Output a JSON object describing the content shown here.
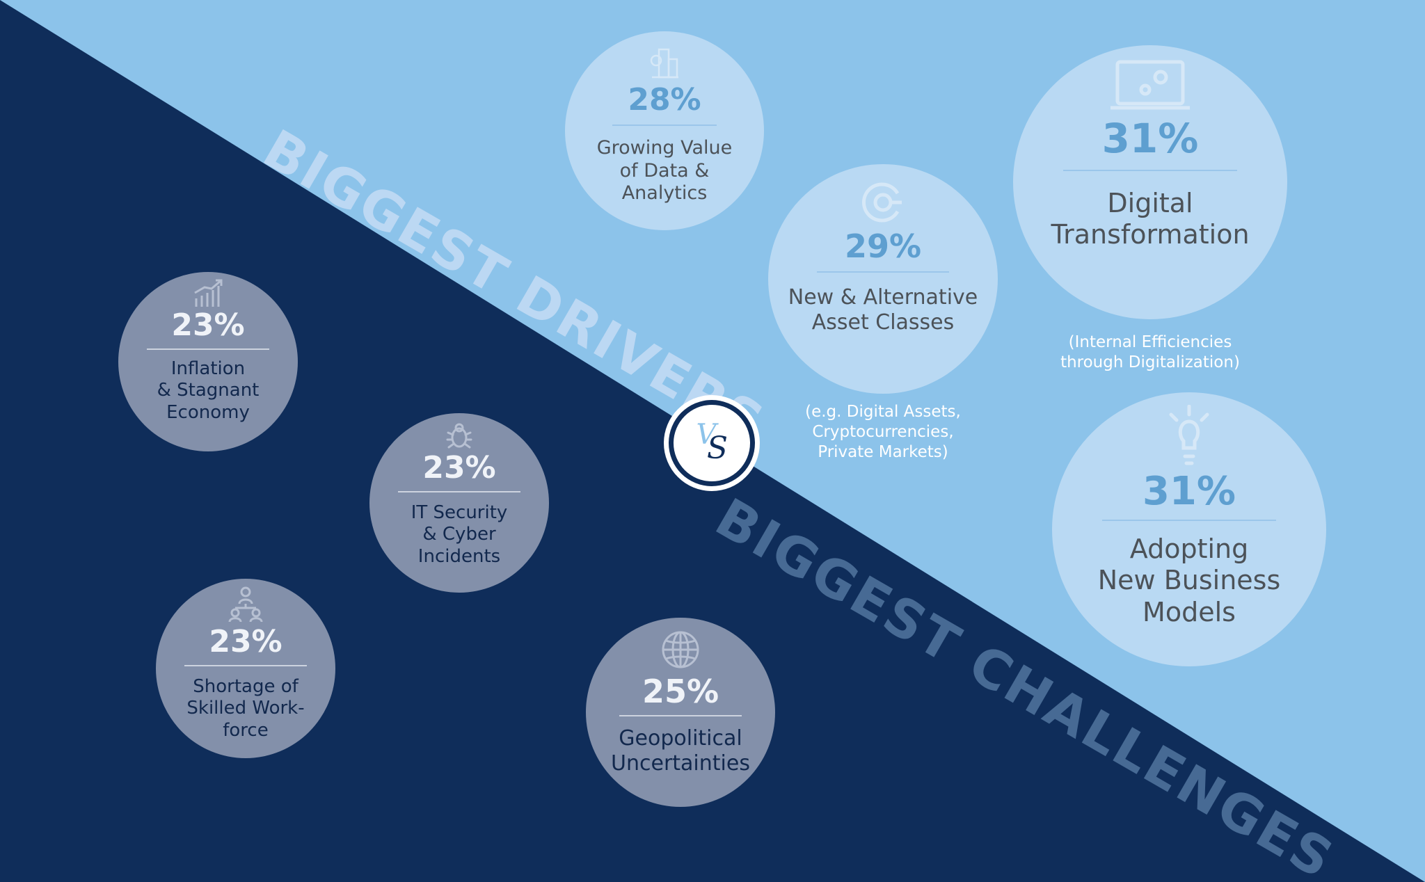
{
  "drivers_heading": "BIGGEST DRIVERS",
  "challenges_heading": "BIGGEST CHALLENGES",
  "vs": {
    "v": "V",
    "s": "S"
  },
  "colors": {
    "drivers_background": "#8cc3ea",
    "challenges_background": "#0f2d5a",
    "driver_bubble": "#b9d9f3",
    "driver_percent": "#5e9fd0",
    "challenge_bubble": "#8390aa"
  },
  "drivers": [
    {
      "id": "data",
      "icon": "data-analytics-icon",
      "percent": "28%",
      "label_lines": [
        "Growing Value",
        "of Data &",
        "Analytics"
      ]
    },
    {
      "id": "asset",
      "icon": "asset-classes-icon",
      "percent": "29%",
      "label_lines": [
        "New & Alternative",
        "Asset Classes"
      ],
      "note": "(e.g. Digital Assets,\nCryptocurrencies,\nPrivate Markets)"
    },
    {
      "id": "digital",
      "icon": "laptop-gears-icon",
      "percent": "31%",
      "label_lines": [
        "Digital",
        "Transformation"
      ],
      "note": "(Internal Efficiencies\nthrough Digitalization)"
    },
    {
      "id": "business",
      "icon": "lightbulb-icon",
      "percent": "31%",
      "label_lines": [
        "Adopting",
        "New Business",
        "Models"
      ]
    }
  ],
  "challenges": [
    {
      "id": "inflation",
      "icon": "growth-chart-icon",
      "percent": "23%",
      "label_lines": [
        "Inflation",
        "& Stagnant",
        "Economy"
      ]
    },
    {
      "id": "security",
      "icon": "bug-icon",
      "percent": "23%",
      "label_lines": [
        "IT Security",
        "& Cyber",
        "Incidents"
      ]
    },
    {
      "id": "workforce",
      "icon": "people-network-icon",
      "percent": "23%",
      "label_lines": [
        "Shortage of",
        "Skilled Work-",
        "force"
      ]
    },
    {
      "id": "geo",
      "icon": "globe-icon",
      "percent": "25%",
      "label_lines": [
        "Geopolitical",
        "Uncertainties"
      ]
    }
  ]
}
